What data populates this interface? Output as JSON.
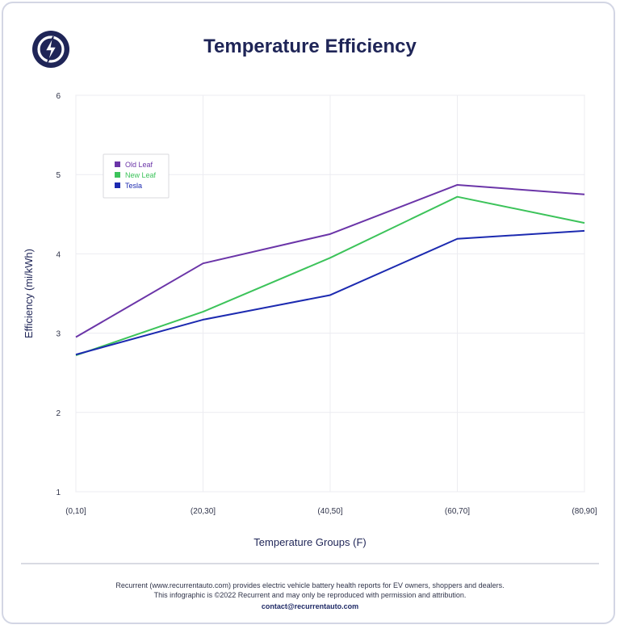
{
  "header": {
    "title": "Temperature Efficiency",
    "logo_icon": "lightning-bolt-icon"
  },
  "chart_data": {
    "type": "line",
    "title": "Temperature Efficiency",
    "xlabel": "Temperature Groups (F)",
    "ylabel": "Efficiency (mi/kWh)",
    "categories": [
      "(0,10]",
      "(20,30]",
      "(40,50]",
      "(60,70]",
      "(80,90]"
    ],
    "ylim": [
      1,
      6
    ],
    "yticks": [
      "1",
      "2",
      "3",
      "4",
      "5",
      "6"
    ],
    "grid": true,
    "legend_position": "top-left",
    "series": [
      {
        "name": "Old Leaf",
        "color": "#6b35a8",
        "values": [
          2.95,
          3.88,
          4.25,
          4.87,
          4.75
        ]
      },
      {
        "name": "New Leaf",
        "color": "#3cc35a",
        "values": [
          2.72,
          3.27,
          3.95,
          4.72,
          4.39
        ]
      },
      {
        "name": "Tesla",
        "color": "#1c2ab0",
        "values": [
          2.73,
          3.17,
          3.48,
          4.19,
          4.29
        ]
      }
    ]
  },
  "footer": {
    "line1": "Recurrent (www.recurrentauto.com) provides electric vehicle battery health reports for EV owners, shoppers and dealers.",
    "line2": "This infographic is ©2022 Recurrent and may only be reproduced with permission and attribution.",
    "contact": "contact@recurrentauto.com"
  }
}
